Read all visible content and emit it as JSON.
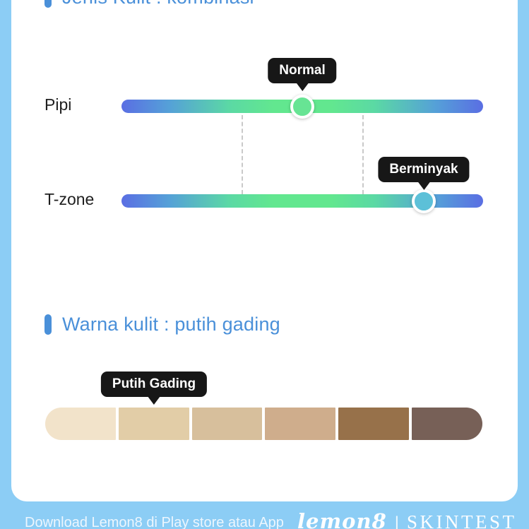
{
  "sections": {
    "skin_type": {
      "title": "Jenis Kulit : kombinasi"
    },
    "skin_tone": {
      "title": "Warna kulit : putih gading"
    }
  },
  "sliders": {
    "rows": [
      {
        "label": "Pipi",
        "tooltip": "Normal",
        "value_pct": 50
      },
      {
        "label": "T-zone",
        "tooltip": "Berminyak",
        "value_pct": 83.6
      }
    ]
  },
  "palette": {
    "tooltip": "Putih Gading",
    "selected_index": 1,
    "swatches": [
      "#f2e3ca",
      "#e2cda7",
      "#d7bf9c",
      "#cfad8c",
      "#97714a",
      "#776057"
    ]
  },
  "footer": {
    "download_text": "Download Lemon8 di Play store atau App",
    "brand": "lemon8",
    "separator": "|",
    "brand_suffix": "SKINTEST"
  },
  "colors": {
    "accent_blue": "#4a90d9",
    "background_blue": "#8ccdf5",
    "card_white": "#ffffff",
    "tooltip_bg": "#171717",
    "track_gradient": [
      "#5a6ee3",
      "#55a0d8",
      "#62e78f",
      "#55a0d8",
      "#5a6ee3"
    ]
  }
}
